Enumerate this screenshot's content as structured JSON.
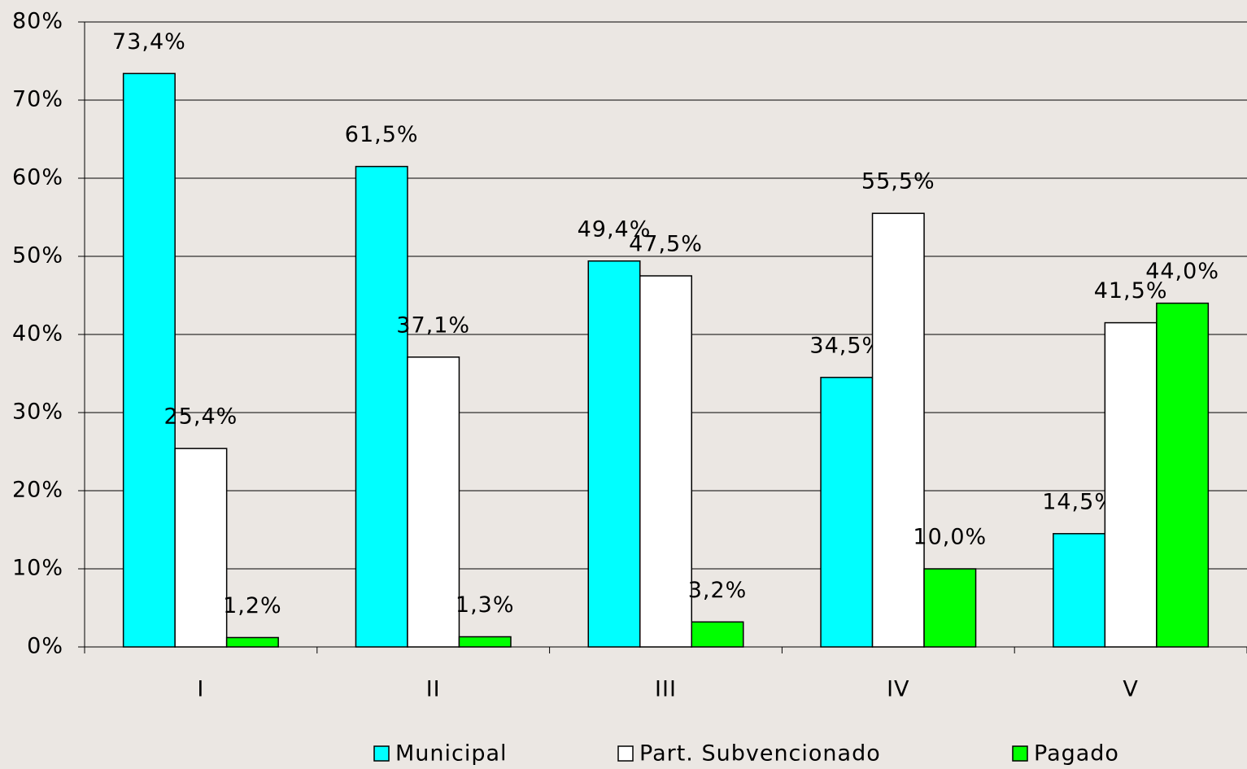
{
  "chart_data": {
    "type": "bar",
    "categories": [
      "I",
      "II",
      "III",
      "IV",
      "V"
    ],
    "series": [
      {
        "name": "Municipal",
        "color": "#00ffff",
        "values": [
          73.4,
          61.5,
          49.4,
          34.5,
          14.5
        ],
        "value_labels": [
          "73,4%",
          "61,5%",
          "49,4%",
          "34,5%",
          "14,5%"
        ]
      },
      {
        "name": "Part. Subvencionado",
        "color": "#ffffff",
        "values": [
          25.4,
          37.1,
          47.5,
          55.5,
          41.5
        ],
        "value_labels": [
          "25,4%",
          "37,1%",
          "47,5%",
          "55,5%",
          "41,5%"
        ]
      },
      {
        "name": "Pagado",
        "color": "#00ff00",
        "values": [
          1.2,
          1.3,
          3.2,
          10.0,
          44.0
        ],
        "value_labels": [
          "1,2%",
          "1,3%",
          "3,2%",
          "10,0%",
          "44,0%"
        ]
      }
    ],
    "ylim": [
      0,
      80
    ],
    "yticks": [
      {
        "value": 0,
        "label": "0%"
      },
      {
        "value": 10,
        "label": "10%"
      },
      {
        "value": 20,
        "label": "20%"
      },
      {
        "value": 30,
        "label": "30%"
      },
      {
        "value": 40,
        "label": "40%"
      },
      {
        "value": 50,
        "label": "50%"
      },
      {
        "value": 60,
        "label": "60%"
      },
      {
        "value": 70,
        "label": "70%"
      },
      {
        "value": 80,
        "label": "80%"
      }
    ],
    "grid": true,
    "legend": "bottom"
  }
}
